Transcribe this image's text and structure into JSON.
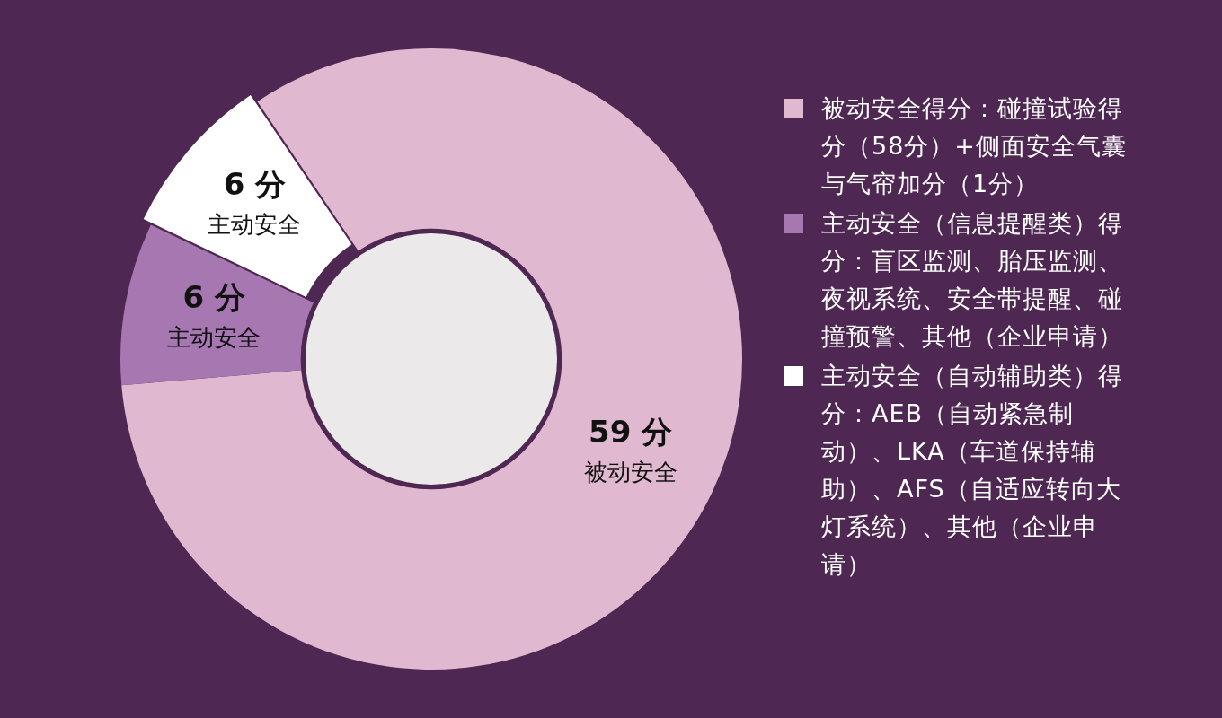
{
  "chart_data": {
    "type": "donut",
    "categories": [
      "被动安全得分：碰撞试验得分（58分）+侧面安全气囊与气帘加分（1分）",
      "主动安全（信息提醒类）得分：盲区监测、胎压监测、夜视系统、安全带提醒、碰撞预警、其他（企业申请）",
      "主动安全（自动辅助类）得分：AEB（自动紧急制动）、LKA（车道保持辅助）、AFS（自适应转向大灯系统）、其他（企业申请）"
    ],
    "values": [
      59,
      6,
      6
    ],
    "colors": [
      "#e0b9d0",
      "#a677b1",
      "#ffffff"
    ],
    "value_labels": [
      "59 分",
      "6 分",
      "6 分"
    ],
    "annotations": [
      "被动安全",
      "主动安全",
      "主动安全"
    ],
    "legend": "right"
  }
}
